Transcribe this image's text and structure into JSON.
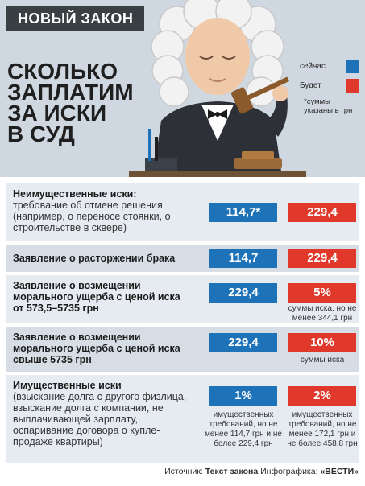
{
  "header": {
    "tag": "НОВЫЙ ЗАКОН",
    "title_lines": [
      "СКОЛЬКО",
      "ЗАПЛАТИМ",
      "ЗА ИСКИ",
      "В СУД"
    ]
  },
  "legend": {
    "now_label": "сейчас",
    "future_label": "Будет",
    "note": "*суммы указаны в грн",
    "now_color": "#1e73b8",
    "future_color": "#e0392c"
  },
  "rows": [
    {
      "title": "Неимущественные иски:",
      "desc": "требование об отмене решения (например, о переносе стоянки, о строительстве в сквере)",
      "now": "114,7*",
      "future": "229,4",
      "now_note": "",
      "future_note": ""
    },
    {
      "title": "Заявление о расторжении брака",
      "desc": "",
      "now": "114,7",
      "future": "229,4",
      "now_note": "",
      "future_note": ""
    },
    {
      "title": "Заявление о возмещении морального ущерба с ценой иска от 573,5–5735 грн",
      "desc": "",
      "now": "229,4",
      "future": "5%",
      "now_note": "",
      "future_note": "суммы иска, но не менее 344,1 грн"
    },
    {
      "title": "Заявление о возмещении морального ущерба с ценой иска свыше 5735 грн",
      "desc": "",
      "now": "229,4",
      "future": "10%",
      "now_note": "",
      "future_note": "суммы иска"
    },
    {
      "title": "Имущественные иски",
      "desc": "(взыскание долга с другого физлица, взыскание долга с компании, не выплачивающей зарплату, оспаривание договора о купле-продаже квартиры)",
      "now": "1%",
      "future": "2%",
      "now_note": "имущественных требований, но не менее 114,7 грн и не более 229,4 грн",
      "future_note": "имущественных требований, но не менее 172,1 грн и не более 458,8 грн"
    }
  ],
  "footer": {
    "source_prefix": "Источник:",
    "source": "Текст закона",
    "credit_prefix": "Инфографика:",
    "credit": "«ВЕСТИ»"
  }
}
